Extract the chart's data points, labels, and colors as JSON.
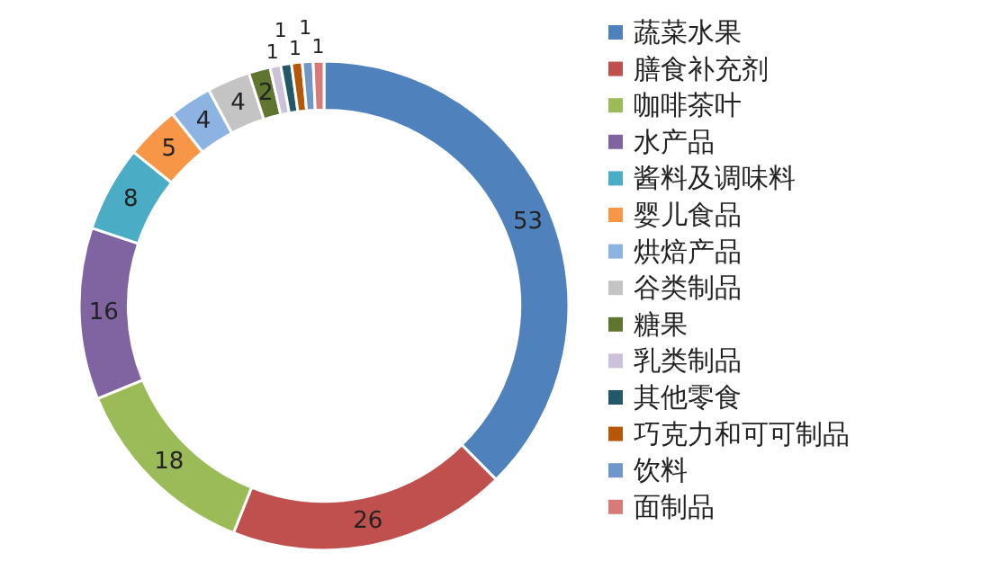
{
  "chart_data": {
    "type": "donut",
    "categories": [
      "蔬菜水果",
      "膳食补充剂",
      "咖啡茶叶",
      "水产品",
      "酱料及调味料",
      "婴儿食品",
      "烘焙产品",
      "谷类制品",
      "糖果",
      "乳类制品",
      "其他零食",
      "巧克力和可可制品",
      "饮料",
      "面制品"
    ],
    "values": [
      53,
      26,
      18,
      16,
      8,
      5,
      4,
      4,
      2,
      1,
      1,
      1,
      1,
      1
    ],
    "colors": [
      "#4f81bd",
      "#c0504d",
      "#9bbb59",
      "#8064a2",
      "#4bacc6",
      "#f79646",
      "#8db3e2",
      "#c4c4c4",
      "#5f7530",
      "#ccc1da",
      "#215968",
      "#b65708",
      "#6f97c9",
      "#d77b79"
    ],
    "data_labels": true,
    "legend": "right"
  }
}
